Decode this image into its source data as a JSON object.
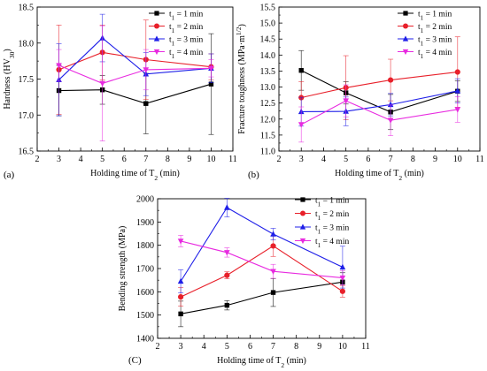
{
  "colors": {
    "t1": "#000000",
    "t2": "#e8202a",
    "t3": "#1f1fe8",
    "t4": "#e82be0"
  },
  "chart_data": [
    {
      "id": "a",
      "panel_label": "(a)",
      "type": "line",
      "xlabel": "Holding time of T",
      "xlabel_sub": "2",
      "xlabel_unit": " (min)",
      "ylabel": "Hardness (HV",
      "ylabel_sub": "30",
      "ylabel_tail": ")",
      "xlim": [
        2,
        11
      ],
      "ylim": [
        16.5,
        18.5
      ],
      "xticks": [
        2,
        3,
        4,
        5,
        6,
        7,
        8,
        9,
        10,
        11
      ],
      "yticks": [
        "16.5",
        "17.0",
        "17.5",
        "18.0",
        "18.5"
      ],
      "legend": "top-right",
      "x": [
        3,
        5,
        7,
        10
      ],
      "series": [
        {
          "key": "t1",
          "name": "t",
          "name_sub": "1",
          "name_tail": " = 1 min",
          "marker": "square",
          "values": [
            17.34,
            17.35,
            17.16,
            17.43
          ],
          "errors": [
            0.35,
            0.2,
            0.42,
            0.7
          ]
        },
        {
          "key": "t2",
          "name": "t",
          "name_sub": "1",
          "name_tail": " = 2 min",
          "marker": "circle",
          "values": [
            17.63,
            17.87,
            17.77,
            17.67
          ],
          "errors": [
            0.62,
            0.38,
            0.55,
            0.18
          ]
        },
        {
          "key": "t3",
          "name": "t",
          "name_sub": "1",
          "name_tail": " = 3 min",
          "marker": "triangle",
          "values": [
            17.49,
            18.07,
            17.57,
            17.65
          ],
          "errors": [
            0.5,
            0.33,
            0.3,
            0.2
          ]
        },
        {
          "key": "t4",
          "name": "t",
          "name_sub": "1",
          "name_tail": " = 4 min",
          "marker": "triangle-down",
          "values": [
            17.69,
            17.44,
            17.63,
            17.65
          ],
          "errors": [
            0.22,
            0.8,
            0.28,
            0.12
          ]
        }
      ]
    },
    {
      "id": "b",
      "panel_label": "(b)",
      "type": "line",
      "xlabel": "Holding time of T",
      "xlabel_sub": "2",
      "xlabel_unit": " (min)",
      "ylabel": "Fracture toughness (MPa·m",
      "ylabel_sup": "1/2",
      "ylabel_tail": ")",
      "xlim": [
        2,
        11
      ],
      "ylim": [
        11.0,
        15.5
      ],
      "xticks": [
        2,
        3,
        4,
        5,
        6,
        7,
        8,
        9,
        10,
        11
      ],
      "yticks": [
        "11.0",
        "11.5",
        "12.0",
        "12.5",
        "13.0",
        "13.5",
        "14.0",
        "14.5",
        "15.0",
        "15.5"
      ],
      "legend": "top-right",
      "x": [
        3,
        5,
        7,
        10
      ],
      "series": [
        {
          "key": "t1",
          "name": "t",
          "name_sub": "1",
          "name_tail": " = 1 min",
          "marker": "square",
          "values": [
            13.52,
            12.82,
            12.22,
            12.87
          ],
          "errors": [
            0.62,
            0.35,
            0.55,
            0.32
          ]
        },
        {
          "key": "t2",
          "name": "t",
          "name_sub": "1",
          "name_tail": " = 2 min",
          "marker": "circle",
          "values": [
            12.67,
            12.98,
            13.22,
            13.47
          ],
          "errors": [
            0.5,
            1.0,
            0.65,
            1.1
          ]
        },
        {
          "key": "t3",
          "name": "t",
          "name_sub": "1",
          "name_tail": " = 3 min",
          "marker": "triangle",
          "values": [
            12.23,
            12.24,
            12.45,
            12.88
          ],
          "errors": [
            0.45,
            0.45,
            0.35,
            0.38
          ]
        },
        {
          "key": "t4",
          "name": "t",
          "name_sub": "1",
          "name_tail": " = 4 min",
          "marker": "triangle-down",
          "values": [
            11.83,
            12.57,
            11.96,
            12.3
          ],
          "errors": [
            0.55,
            0.5,
            0.48,
            0.4
          ]
        }
      ]
    },
    {
      "id": "c",
      "panel_label": "(C)",
      "type": "line",
      "xlabel": "Holding time of T",
      "xlabel_sub": "2",
      "xlabel_unit": " (min)",
      "ylabel": "Bending strength (MPa)",
      "xlim": [
        2,
        11
      ],
      "ylim": [
        1400,
        2000
      ],
      "xticks": [
        2,
        3,
        4,
        5,
        6,
        7,
        8,
        9,
        10,
        11
      ],
      "yticks": [
        "1400",
        "1500",
        "1600",
        "1700",
        "1800",
        "1900",
        "2000"
      ],
      "legend": "top-right",
      "x": [
        3,
        5,
        7,
        10
      ],
      "series": [
        {
          "key": "t1",
          "name": "t",
          "name_sub": "1",
          "name_tail": " = 1 min",
          "marker": "square",
          "values": [
            1505,
            1542,
            1597,
            1642
          ],
          "errors": [
            55,
            20,
            60,
            40
          ]
        },
        {
          "key": "t2",
          "name": "t",
          "name_sub": "1",
          "name_tail": " = 2 min",
          "marker": "circle",
          "values": [
            1578,
            1671,
            1797,
            1602
          ],
          "errors": [
            40,
            15,
            45,
            25
          ]
        },
        {
          "key": "t3",
          "name": "t",
          "name_sub": "1",
          "name_tail": " = 3 min",
          "marker": "triangle",
          "values": [
            1645,
            1962,
            1848,
            1706
          ],
          "errors": [
            50,
            40,
            25,
            90
          ]
        },
        {
          "key": "t4",
          "name": "t",
          "name_sub": "1",
          "name_tail": " = 4 min",
          "marker": "triangle-down",
          "values": [
            1818,
            1769,
            1688,
            1660
          ],
          "errors": [
            25,
            20,
            30,
            30
          ]
        }
      ]
    }
  ]
}
